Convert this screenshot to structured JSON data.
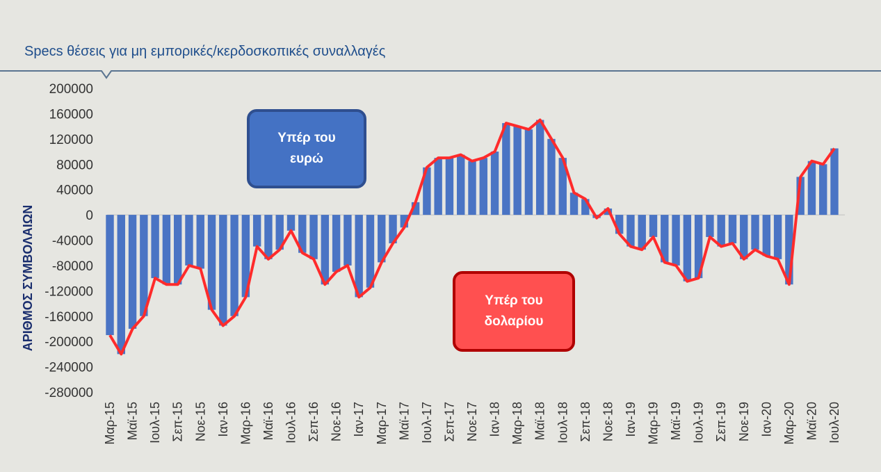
{
  "chart_data": {
    "type": "bar_line",
    "title": "Specs θέσεις για μη εμπορικές/κερδοσκοπικές συναλλαγές",
    "y_label": "ΑΡΙΘΜΟΣ ΣΥΜΒΟΛΑΙΩΝ",
    "annotations": [
      "Υπέρ του ευρώ",
      "Υπέρ του δολαρίου"
    ],
    "categories": [
      "Μαρ-15",
      null,
      "Μαϊ-15",
      null,
      "Ιουλ-15",
      null,
      "Σεπ-15",
      null,
      "Νοε-15",
      null,
      "Ιαν-16",
      null,
      "Μαρ-16",
      null,
      "Μαϊ-16",
      null,
      "Ιουλ-16",
      null,
      "Σεπ-16",
      null,
      "Νοε-16",
      null,
      "Ιαν-17",
      null,
      "Μαρ-17",
      null,
      "Μαϊ-17",
      null,
      "Ιουλ-17",
      null,
      "Σεπ-17",
      null,
      "Νοε-17",
      null,
      "Ιαν-18",
      null,
      "Μαρ-18",
      null,
      "Μαϊ-18",
      null,
      "Ιουλ-18",
      null,
      "Σεπ-18",
      null,
      "Νοε-18",
      null,
      "Ιαν-19",
      null,
      "Μαρ-19",
      null,
      "Μαϊ-19",
      null,
      "Ιουλ-19",
      null,
      "Σεπ-19",
      null,
      "Νοε-19",
      null,
      "Ιαν-20",
      null,
      "Μαρ-20",
      null,
      "Μαϊ-20",
      null,
      "Ιουλ-20"
    ],
    "values": [
      -190000,
      -220000,
      -180000,
      -160000,
      -100000,
      -110000,
      -110000,
      -80000,
      -85000,
      -150000,
      -175000,
      -160000,
      -130000,
      -50000,
      -70000,
      -55000,
      -25000,
      -60000,
      -70000,
      -110000,
      -90000,
      -80000,
      -130000,
      -115000,
      -75000,
      -45000,
      -20000,
      20000,
      75000,
      90000,
      90000,
      95000,
      85000,
      90000,
      100000,
      145000,
      140000,
      135000,
      150000,
      120000,
      90000,
      35000,
      25000,
      -5000,
      10000,
      -30000,
      -50000,
      -55000,
      -35000,
      -75000,
      -80000,
      -105000,
      -100000,
      -35000,
      -50000,
      -45000,
      -70000,
      -55000,
      -65000,
      -70000,
      -110000,
      60000,
      85000,
      80000,
      105000
    ],
    "color": "#4a74c4",
    "line_color": "#ff2b2b",
    "ylim": [
      -280000,
      200000
    ],
    "yticks": [
      -280000,
      -240000,
      -200000,
      -160000,
      -120000,
      -80000,
      -40000,
      0,
      40000,
      80000,
      120000,
      160000,
      200000
    ]
  }
}
